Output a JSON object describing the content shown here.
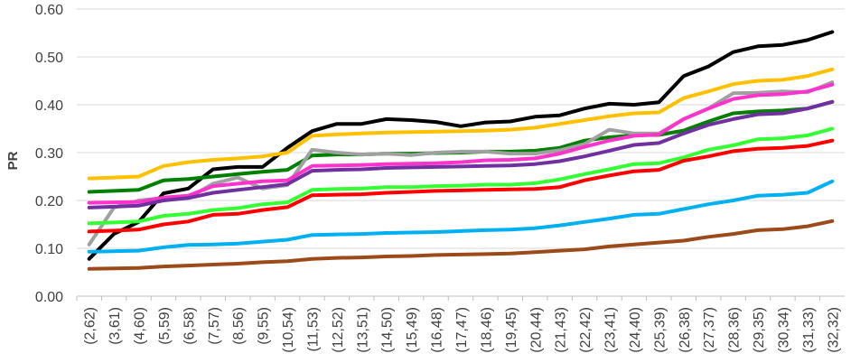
{
  "chart_data": {
    "type": "line",
    "title": "",
    "xlabel": "",
    "ylabel": "PR",
    "ylim": [
      0,
      0.6
    ],
    "yticks": [
      "0.00",
      "0.10",
      "0.20",
      "0.30",
      "0.40",
      "0.50",
      "0.60"
    ],
    "grid": true,
    "legend": "none",
    "categories": [
      "(2,62)",
      "(3,61)",
      "(4,60)",
      "(5,59)",
      "(6,58)",
      "(7,57)",
      "(8,56)",
      "(9,55)",
      "(10,54)",
      "(11,53)",
      "(12,52)",
      "(13,51)",
      "(14,50)",
      "(15,49)",
      "(16,48)",
      "(17,47)",
      "(18,46)",
      "(19,45)",
      "(20,44)",
      "(21,43)",
      "(22,42)",
      "(23,41)",
      "(24,40)",
      "(25,39)",
      "(26,38)",
      "(27,37)",
      "(28,36)",
      "(29,35)",
      "(30,34)",
      "(31,33)",
      "(32,32)"
    ],
    "series": [
      {
        "color": "#000000",
        "values": [
          0.078,
          0.13,
          0.155,
          0.215,
          0.225,
          0.265,
          0.27,
          0.27,
          0.31,
          0.345,
          0.36,
          0.36,
          0.37,
          0.368,
          0.364,
          0.355,
          0.363,
          0.365,
          0.375,
          0.378,
          0.392,
          0.402,
          0.4,
          0.405,
          0.46,
          0.48,
          0.51,
          0.522,
          0.525,
          0.535,
          0.552
        ]
      },
      {
        "color": "#FFC000",
        "values": [
          0.246,
          0.248,
          0.25,
          0.272,
          0.28,
          0.285,
          0.288,
          0.292,
          0.3,
          0.335,
          0.338,
          0.34,
          0.342,
          0.343,
          0.344,
          0.345,
          0.346,
          0.348,
          0.352,
          0.36,
          0.368,
          0.376,
          0.382,
          0.384,
          0.414,
          0.428,
          0.443,
          0.45,
          0.452,
          0.46,
          0.474
        ]
      },
      {
        "color": "#008000",
        "values": [
          0.218,
          0.22,
          0.222,
          0.242,
          0.245,
          0.25,
          0.255,
          0.26,
          0.264,
          0.294,
          0.296,
          0.296,
          0.298,
          0.298,
          0.299,
          0.3,
          0.302,
          0.302,
          0.304,
          0.31,
          0.325,
          0.332,
          0.336,
          0.337,
          0.346,
          0.365,
          0.382,
          0.386,
          0.388,
          0.392,
          0.406
        ]
      },
      {
        "color": "#A0A0A0",
        "values": [
          0.108,
          0.185,
          0.2,
          0.205,
          0.205,
          0.235,
          0.248,
          0.225,
          0.232,
          0.306,
          0.3,
          0.296,
          0.298,
          0.295,
          0.3,
          0.302,
          0.302,
          0.298,
          0.298,
          0.305,
          0.318,
          0.348,
          0.34,
          0.34,
          0.37,
          0.392,
          0.424,
          0.425,
          0.428,
          0.426,
          0.447
        ]
      },
      {
        "color": "#FF33CC",
        "values": [
          0.195,
          0.196,
          0.197,
          0.206,
          0.21,
          0.23,
          0.235,
          0.24,
          0.242,
          0.272,
          0.273,
          0.274,
          0.276,
          0.277,
          0.278,
          0.28,
          0.284,
          0.285,
          0.288,
          0.298,
          0.312,
          0.325,
          0.335,
          0.338,
          0.37,
          0.392,
          0.412,
          0.42,
          0.422,
          0.428,
          0.442
        ]
      },
      {
        "color": "#7030A0",
        "values": [
          0.185,
          0.187,
          0.189,
          0.2,
          0.205,
          0.216,
          0.222,
          0.228,
          0.234,
          0.262,
          0.264,
          0.265,
          0.268,
          0.269,
          0.27,
          0.271,
          0.272,
          0.273,
          0.276,
          0.282,
          0.292,
          0.304,
          0.316,
          0.32,
          0.34,
          0.358,
          0.37,
          0.38,
          0.382,
          0.392,
          0.406
        ]
      },
      {
        "color": "#33FF33",
        "values": [
          0.152,
          0.154,
          0.156,
          0.168,
          0.172,
          0.18,
          0.184,
          0.192,
          0.196,
          0.222,
          0.224,
          0.225,
          0.228,
          0.228,
          0.23,
          0.231,
          0.233,
          0.233,
          0.236,
          0.244,
          0.255,
          0.265,
          0.276,
          0.278,
          0.29,
          0.306,
          0.315,
          0.328,
          0.33,
          0.336,
          0.35
        ]
      },
      {
        "color": "#FF0000",
        "values": [
          0.135,
          0.137,
          0.139,
          0.15,
          0.156,
          0.17,
          0.172,
          0.18,
          0.186,
          0.211,
          0.212,
          0.213,
          0.216,
          0.218,
          0.22,
          0.221,
          0.222,
          0.223,
          0.224,
          0.228,
          0.242,
          0.252,
          0.261,
          0.264,
          0.283,
          0.292,
          0.303,
          0.308,
          0.31,
          0.314,
          0.325
        ]
      },
      {
        "color": "#00B0F0",
        "values": [
          0.093,
          0.094,
          0.095,
          0.102,
          0.107,
          0.108,
          0.11,
          0.114,
          0.118,
          0.128,
          0.129,
          0.13,
          0.132,
          0.133,
          0.134,
          0.136,
          0.138,
          0.139,
          0.142,
          0.148,
          0.155,
          0.162,
          0.17,
          0.172,
          0.182,
          0.192,
          0.2,
          0.21,
          0.212,
          0.216,
          0.24
        ]
      },
      {
        "color": "#9C4A1A",
        "values": [
          0.057,
          0.058,
          0.059,
          0.062,
          0.064,
          0.066,
          0.068,
          0.071,
          0.073,
          0.078,
          0.08,
          0.081,
          0.083,
          0.084,
          0.086,
          0.087,
          0.088,
          0.089,
          0.092,
          0.095,
          0.098,
          0.104,
          0.108,
          0.112,
          0.116,
          0.124,
          0.13,
          0.138,
          0.14,
          0.146,
          0.157
        ]
      }
    ]
  }
}
